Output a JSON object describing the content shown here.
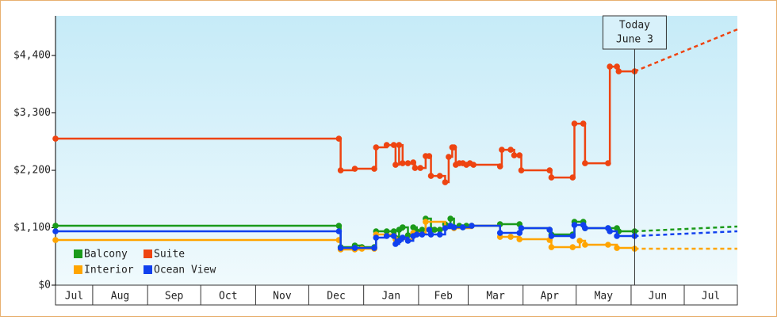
{
  "chart_data": {
    "type": "step-line",
    "xlim": [
      0,
      385
    ],
    "ylim": [
      0,
      5160
    ],
    "xticks": [
      {
        "value": 0,
        "label": "Jul"
      },
      {
        "value": 21,
        "label": "Aug"
      },
      {
        "value": 52,
        "label": "Sep"
      },
      {
        "value": 82,
        "label": "Oct"
      },
      {
        "value": 113,
        "label": "Nov"
      },
      {
        "value": 143,
        "label": "Dec"
      },
      {
        "value": 174,
        "label": "Jan"
      },
      {
        "value": 205,
        "label": "Feb"
      },
      {
        "value": 233,
        "label": "Mar"
      },
      {
        "value": 264,
        "label": "Apr"
      },
      {
        "value": 294,
        "label": "May"
      },
      {
        "value": 325,
        "label": "Jun"
      },
      {
        "value": 355,
        "label": "Jul"
      }
    ],
    "yticks": [
      {
        "value": 0,
        "label": "$0"
      },
      {
        "value": 1100,
        "label": "$1,100"
      },
      {
        "value": 2200,
        "label": "$2,200"
      },
      {
        "value": 3300,
        "label": "$3,300"
      },
      {
        "value": 4400,
        "label": "$4,400"
      }
    ],
    "annotation": {
      "x": 327,
      "lines": [
        "Today",
        "June 3"
      ]
    },
    "legend": "bottom-left",
    "series": [
      {
        "name": "Balcony",
        "color": "#1a9a1a",
        "x": [
          0,
          160,
          161,
          169,
          173,
          180,
          181,
          187,
          191,
          192,
          194,
          196,
          199,
          202,
          204,
          207,
          209,
          212,
          214,
          217,
          220,
          223,
          225,
          228,
          230,
          232,
          235,
          251,
          262,
          263,
          279,
          280,
          292,
          293,
          298,
          299,
          312,
          317,
          318,
          327
        ],
        "values": [
          1138,
          1138,
          728,
          759,
          728,
          728,
          1032,
          1032,
          1032,
          910,
          1062,
          1108,
          956,
          1108,
          1032,
          1062,
          1274,
          1062,
          1062,
          1062,
          1168,
          1274,
          1108,
          1138,
          1108,
          1138,
          1138,
          1168,
          1168,
          1092,
          1062,
          971,
          971,
          1214,
          1214,
          1092,
          1092,
          1092,
          1032,
          1032
        ],
        "projection": {
          "x": [
            327,
            385
          ],
          "values": [
            1032,
            1123
          ]
        }
      },
      {
        "name": "Suite",
        "color": "#ee4411",
        "x": [
          0,
          160,
          161,
          169,
          180,
          181,
          187,
          191,
          192,
          194,
          196,
          199,
          202,
          203,
          206,
          209,
          211,
          212,
          217,
          220,
          222,
          224,
          225,
          226,
          228,
          230,
          232,
          234,
          236,
          251,
          252,
          257,
          259,
          262,
          263,
          279,
          280,
          292,
          293,
          298,
          299,
          312,
          313,
          317,
          318,
          327
        ],
        "values": [
          2807,
          2807,
          2200,
          2230,
          2230,
          2640,
          2685,
          2685,
          2306,
          2685,
          2336,
          2336,
          2351,
          2245,
          2245,
          2473,
          2473,
          2093,
          2093,
          1972,
          2458,
          2640,
          2640,
          2306,
          2336,
          2336,
          2306,
          2336,
          2306,
          2276,
          2594,
          2594,
          2488,
          2488,
          2200,
          2200,
          2063,
          2063,
          3095,
          3095,
          2336,
          2336,
          4187,
          4187,
          4096,
          4096
        ],
        "projection": {
          "x": [
            327,
            385
          ],
          "values": [
            4096,
            4900
          ]
        }
      },
      {
        "name": "Interior",
        "color": "#ffa500",
        "x": [
          0,
          160,
          161,
          169,
          173,
          180,
          181,
          192,
          202,
          209,
          220,
          225,
          235,
          251,
          257,
          262,
          279,
          280,
          292,
          296,
          299,
          312,
          317,
          327
        ],
        "values": [
          865,
          865,
          683,
          683,
          698,
          698,
          971,
          880,
          1001,
          1214,
          1092,
          1092,
          1138,
          925,
          925,
          880,
          865,
          728,
          728,
          850,
          774,
          774,
          713,
          698
        ],
        "projection": {
          "x": [
            327,
            385
          ],
          "values": [
            698,
            698
          ]
        }
      },
      {
        "name": "Ocean View",
        "color": "#1040ee",
        "x": [
          0,
          160,
          161,
          169,
          180,
          181,
          187,
          191,
          192,
          194,
          196,
          199,
          202,
          204,
          207,
          211,
          212,
          217,
          220,
          223,
          225,
          230,
          235,
          251,
          262,
          263,
          279,
          280,
          292,
          293,
          298,
          299,
          312,
          313,
          317,
          327
        ],
        "values": [
          1032,
          1032,
          713,
          713,
          713,
          910,
          941,
          941,
          789,
          850,
          910,
          850,
          941,
          971,
          971,
          1062,
          971,
          971,
          1092,
          1138,
          1108,
          1108,
          1138,
          1001,
          1001,
          1092,
          1062,
          941,
          941,
          1153,
          1153,
          1092,
          1092,
          1032,
          941,
          941
        ],
        "projection": {
          "x": [
            327,
            385
          ],
          "values": [
            941,
            1032
          ]
        }
      }
    ]
  }
}
